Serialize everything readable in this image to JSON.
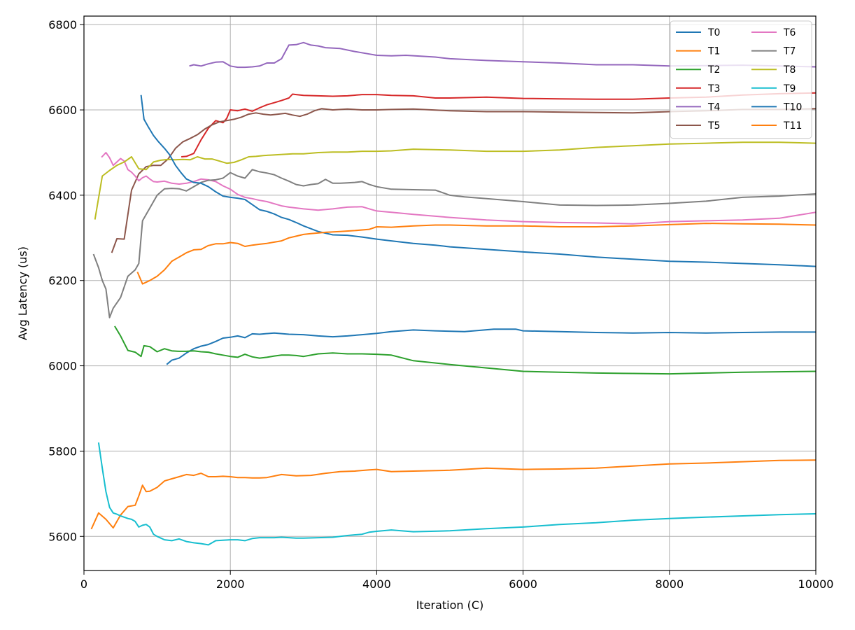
{
  "chart_data": {
    "type": "line",
    "title": "",
    "xlabel": "Iteration (C)",
    "ylabel": "Avg Latency (us)",
    "xlim": [
      0,
      10000
    ],
    "ylim": [
      5520,
      6820
    ],
    "xticks": [
      0,
      2000,
      4000,
      6000,
      8000,
      10000
    ],
    "yticks": [
      5600,
      5800,
      6000,
      6200,
      6400,
      6600,
      6800
    ],
    "grid": true,
    "legend_position": "top-right",
    "legend_columns": 2,
    "series": [
      {
        "name": "T0",
        "color": "#1f77b4",
        "x": [
          1130,
          1200,
          1300,
          1400,
          1500,
          1600,
          1700,
          1800,
          1900,
          2000,
          2100,
          2200,
          2300,
          2400,
          2600,
          2800,
          3000,
          3200,
          3400,
          3600,
          3800,
          4000,
          4200,
          4500,
          4800,
          5200,
          5600,
          5900,
          6000,
          6500,
          7000,
          7500,
          8000,
          8500,
          9000,
          9500,
          10000
        ],
        "y": [
          6003,
          6013,
          6018,
          6030,
          6040,
          6046,
          6050,
          6057,
          6065,
          6067,
          6070,
          6066,
          6075,
          6074,
          6077,
          6074,
          6073,
          6070,
          6068,
          6070,
          6073,
          6076,
          6080,
          6084,
          6082,
          6080,
          6086,
          6086,
          6082,
          6080,
          6078,
          6077,
          6078,
          6077,
          6078,
          6079,
          6079
        ]
      },
      {
        "name": "T1",
        "color": "#ff7f0e",
        "x": [
          100,
          200,
          300,
          400,
          500,
          600,
          700,
          750,
          800,
          850,
          900,
          1000,
          1100,
          1200,
          1300,
          1400,
          1500,
          1600,
          1700,
          1800,
          1900,
          2000,
          2100,
          2200,
          2300,
          2400,
          2500,
          2700,
          2900,
          3100,
          3300,
          3500,
          3700,
          3900,
          4000,
          4200,
          4500,
          5000,
          5500,
          6000,
          6500,
          7000,
          7500,
          8000,
          8500,
          9000,
          9500,
          10000
        ],
        "y": [
          5617,
          5655,
          5640,
          5620,
          5650,
          5670,
          5673,
          5695,
          5720,
          5705,
          5706,
          5715,
          5730,
          5735,
          5740,
          5745,
          5743,
          5748,
          5740,
          5740,
          5741,
          5740,
          5738,
          5738,
          5737,
          5737,
          5738,
          5745,
          5742,
          5743,
          5748,
          5752,
          5753,
          5756,
          5757,
          5752,
          5753,
          5755,
          5760,
          5757,
          5758,
          5760,
          5765,
          5770,
          5772,
          5775,
          5778,
          5779
        ]
      },
      {
        "name": "T2",
        "color": "#2ca02c",
        "x": [
          420,
          500,
          600,
          700,
          780,
          820,
          900,
          1000,
          1100,
          1200,
          1300,
          1400,
          1500,
          1600,
          1700,
          1800,
          1900,
          2000,
          2100,
          2200,
          2300,
          2400,
          2500,
          2600,
          2700,
          2800,
          2900,
          3000,
          3200,
          3400,
          3600,
          3800,
          4000,
          4200,
          4500,
          5000,
          5500,
          6000,
          6500,
          7000,
          7500,
          8000,
          8500,
          9000,
          9500,
          10000
        ],
        "y": [
          6093,
          6070,
          6036,
          6032,
          6022,
          6047,
          6045,
          6033,
          6040,
          6035,
          6034,
          6034,
          6035,
          6033,
          6032,
          6028,
          6025,
          6022,
          6020,
          6027,
          6021,
          6018,
          6020,
          6023,
          6025,
          6025,
          6024,
          6022,
          6028,
          6030,
          6028,
          6028,
          6027,
          6025,
          6012,
          6003,
          5995,
          5987,
          5985,
          5983,
          5982,
          5981,
          5983,
          5985,
          5986,
          5987
        ]
      },
      {
        "name": "T3",
        "color": "#d62728",
        "x": [
          1330,
          1400,
          1500,
          1600,
          1700,
          1800,
          1900,
          1950,
          2000,
          2100,
          2200,
          2300,
          2400,
          2500,
          2600,
          2700,
          2800,
          2850,
          2900,
          3000,
          3200,
          3400,
          3600,
          3800,
          4000,
          4200,
          4500,
          4800,
          5000,
          5500,
          6000,
          6500,
          7000,
          7500,
          8000,
          8500,
          9000,
          9500,
          10000
        ],
        "y": [
          6490,
          6491,
          6498,
          6530,
          6557,
          6575,
          6570,
          6580,
          6600,
          6598,
          6602,
          6597,
          6605,
          6612,
          6617,
          6622,
          6628,
          6637,
          6636,
          6634,
          6633,
          6632,
          6633,
          6636,
          6636,
          6634,
          6633,
          6628,
          6628,
          6630,
          6627,
          6626,
          6625,
          6625,
          6628,
          6630,
          6635,
          6638,
          6640
        ]
      },
      {
        "name": "T4",
        "color": "#9467bd",
        "x": [
          1440,
          1500,
          1600,
          1700,
          1800,
          1900,
          2000,
          2100,
          2200,
          2300,
          2400,
          2500,
          2600,
          2700,
          2800,
          2900,
          3000,
          3100,
          3200,
          3300,
          3500,
          3700,
          3900,
          4000,
          4200,
          4400,
          4600,
          4800,
          5000,
          5500,
          6000,
          6500,
          7000,
          7500,
          8000,
          8500,
          9000,
          9500,
          10000
        ],
        "y": [
          6703,
          6706,
          6703,
          6708,
          6712,
          6713,
          6703,
          6700,
          6700,
          6701,
          6703,
          6710,
          6710,
          6720,
          6752,
          6753,
          6758,
          6752,
          6750,
          6746,
          6744,
          6737,
          6731,
          6728,
          6727,
          6728,
          6726,
          6724,
          6720,
          6716,
          6713,
          6710,
          6706,
          6706,
          6703,
          6704,
          6705,
          6703,
          6701
        ]
      },
      {
        "name": "T5",
        "color": "#8c564b",
        "x": [
          380,
          450,
          550,
          650,
          750,
          850,
          950,
          1050,
          1150,
          1250,
          1350,
          1450,
          1550,
          1650,
          1750,
          1850,
          1950,
          2050,
          2150,
          2250,
          2350,
          2450,
          2550,
          2650,
          2750,
          2850,
          2950,
          3050,
          3150,
          3250,
          3400,
          3600,
          3800,
          4000,
          4200,
          4500,
          5000,
          5500,
          6000,
          6500,
          7000,
          7500,
          8000,
          8500,
          9000,
          9500,
          10000
        ],
        "y": [
          6265,
          6298,
          6297,
          6412,
          6450,
          6467,
          6470,
          6470,
          6485,
          6510,
          6525,
          6533,
          6542,
          6555,
          6565,
          6572,
          6575,
          6578,
          6583,
          6590,
          6593,
          6590,
          6588,
          6590,
          6592,
          6588,
          6585,
          6590,
          6598,
          6603,
          6600,
          6602,
          6600,
          6600,
          6601,
          6602,
          6598,
          6596,
          6596,
          6595,
          6594,
          6593,
          6596,
          6598,
          6601,
          6601,
          6603
        ]
      },
      {
        "name": "T6",
        "color": "#e377c2",
        "x": [
          240,
          300,
          350,
          400,
          450,
          500,
          550,
          600,
          650,
          700,
          750,
          800,
          850,
          900,
          950,
          1000,
          1100,
          1200,
          1300,
          1400,
          1500,
          1600,
          1700,
          1800,
          1900,
          2000,
          2100,
          2200,
          2300,
          2400,
          2500,
          2600,
          2700,
          2800,
          3000,
          3200,
          3400,
          3600,
          3800,
          3900,
          4000,
          4200,
          4500,
          5000,
          5500,
          6000,
          6500,
          7000,
          7500,
          8000,
          8500,
          9000,
          9500,
          10000
        ],
        "y": [
          6489,
          6500,
          6488,
          6470,
          6478,
          6486,
          6480,
          6460,
          6454,
          6445,
          6434,
          6441,
          6445,
          6438,
          6432,
          6431,
          6433,
          6428,
          6426,
          6428,
          6432,
          6438,
          6436,
          6432,
          6422,
          6414,
          6402,
          6395,
          6392,
          6388,
          6385,
          6380,
          6375,
          6372,
          6368,
          6365,
          6368,
          6372,
          6373,
          6368,
          6363,
          6360,
          6355,
          6348,
          6342,
          6338,
          6336,
          6335,
          6333,
          6338,
          6340,
          6342,
          6346,
          6360
        ]
      },
      {
        "name": "T7",
        "color": "#7f7f7f",
        "x": [
          130,
          200,
          250,
          300,
          350,
          400,
          500,
          600,
          700,
          750,
          800,
          900,
          1000,
          1100,
          1200,
          1300,
          1400,
          1500,
          1600,
          1700,
          1800,
          1900,
          2000,
          2100,
          2200,
          2300,
          2400,
          2500,
          2600,
          2700,
          2800,
          2900,
          3000,
          3100,
          3200,
          3300,
          3400,
          3500,
          3600,
          3700,
          3800,
          3900,
          4000,
          4200,
          4500,
          4800,
          5000,
          5200,
          5500,
          6000,
          6500,
          7000,
          7500,
          8000,
          8500,
          9000,
          9500,
          10000
        ],
        "y": [
          6262,
          6230,
          6200,
          6180,
          6113,
          6135,
          6160,
          6210,
          6225,
          6240,
          6340,
          6370,
          6400,
          6415,
          6416,
          6415,
          6410,
          6420,
          6430,
          6435,
          6436,
          6440,
          6453,
          6445,
          6440,
          6460,
          6455,
          6452,
          6448,
          6440,
          6433,
          6425,
          6422,
          6425,
          6427,
          6437,
          6428,
          6428,
          6429,
          6430,
          6432,
          6425,
          6420,
          6414,
          6413,
          6412,
          6400,
          6396,
          6392,
          6385,
          6377,
          6376,
          6377,
          6381,
          6386,
          6395,
          6398,
          6403
        ]
      },
      {
        "name": "T8",
        "color": "#bcbd22",
        "x": [
          150,
          250,
          350,
          450,
          550,
          650,
          750,
          850,
          950,
          1050,
          1150,
          1250,
          1350,
          1450,
          1550,
          1650,
          1750,
          1850,
          1950,
          2050,
          2150,
          2250,
          2350,
          2450,
          2550,
          2650,
          2750,
          2850,
          3000,
          3200,
          3400,
          3600,
          3800,
          4000,
          4200,
          4500,
          5000,
          5500,
          6000,
          6500,
          7000,
          7500,
          8000,
          8500,
          9000,
          9500,
          10000
        ],
        "y": [
          6343,
          6445,
          6458,
          6470,
          6478,
          6490,
          6462,
          6460,
          6478,
          6482,
          6484,
          6483,
          6484,
          6483,
          6490,
          6485,
          6485,
          6480,
          6475,
          6477,
          6483,
          6490,
          6491,
          6493,
          6494,
          6495,
          6496,
          6497,
          6497,
          6500,
          6501,
          6501,
          6503,
          6503,
          6504,
          6508,
          6506,
          6503,
          6503,
          6506,
          6512,
          6516,
          6520,
          6522,
          6524,
          6524,
          6522
        ]
      },
      {
        "name": "T9",
        "color": "#17becf",
        "x": [
          200,
          250,
          300,
          350,
          400,
          450,
          500,
          550,
          600,
          650,
          700,
          750,
          800,
          850,
          900,
          950,
          1000,
          1050,
          1100,
          1150,
          1200,
          1300,
          1400,
          1500,
          1600,
          1700,
          1800,
          1900,
          2000,
          2100,
          2200,
          2300,
          2400,
          2500,
          2600,
          2700,
          2800,
          2900,
          3000,
          3200,
          3400,
          3500,
          3600,
          3800,
          3900,
          4000,
          4200,
          4500,
          5000,
          5500,
          6000,
          6500,
          7000,
          7500,
          8000,
          8500,
          9000,
          9500,
          10000
        ],
        "y": [
          5820,
          5760,
          5705,
          5668,
          5655,
          5652,
          5648,
          5645,
          5642,
          5640,
          5635,
          5622,
          5626,
          5628,
          5622,
          5605,
          5600,
          5596,
          5592,
          5591,
          5590,
          5594,
          5588,
          5585,
          5583,
          5580,
          5590,
          5591,
          5592,
          5592,
          5590,
          5595,
          5597,
          5597,
          5597,
          5598,
          5597,
          5596,
          5596,
          5597,
          5598,
          5600,
          5602,
          5605,
          5610,
          5612,
          5615,
          5611,
          5613,
          5618,
          5622,
          5628,
          5632,
          5638,
          5642,
          5645,
          5648,
          5651,
          5653
        ]
      },
      {
        "name": "T10",
        "color": "#1f77b4",
        "x": [
          780,
          820,
          880,
          950,
          1020,
          1100,
          1170,
          1250,
          1330,
          1400,
          1500,
          1600,
          1700,
          1800,
          1900,
          2000,
          2100,
          2200,
          2300,
          2400,
          2500,
          2600,
          2700,
          2800,
          2900,
          3000,
          3200,
          3400,
          3600,
          3800,
          4000,
          4200,
          4500,
          4800,
          5000,
          5500,
          6000,
          6500,
          7000,
          7500,
          8000,
          8500,
          9000,
          9500,
          10000
        ],
        "y": [
          6635,
          6578,
          6560,
          6540,
          6525,
          6510,
          6495,
          6470,
          6452,
          6438,
          6430,
          6428,
          6420,
          6408,
          6398,
          6395,
          6393,
          6390,
          6378,
          6366,
          6362,
          6356,
          6348,
          6343,
          6336,
          6328,
          6315,
          6307,
          6306,
          6302,
          6297,
          6293,
          6287,
          6283,
          6279,
          6273,
          6267,
          6262,
          6255,
          6250,
          6245,
          6243,
          6240,
          6237,
          6233
        ]
      },
      {
        "name": "T11",
        "color": "#ff7f0e",
        "x": [
          730,
          800,
          850,
          900,
          1000,
          1100,
          1200,
          1300,
          1400,
          1500,
          1600,
          1700,
          1800,
          1900,
          2000,
          2100,
          2200,
          2300,
          2400,
          2500,
          2600,
          2700,
          2800,
          2900,
          3000,
          3100,
          3300,
          3500,
          3700,
          3900,
          4000,
          4200,
          4500,
          4800,
          5000,
          5500,
          6000,
          6500,
          7000,
          7500,
          8000,
          8500,
          9000,
          9500,
          10000
        ],
        "y": [
          6220,
          6192,
          6196,
          6200,
          6210,
          6225,
          6245,
          6255,
          6265,
          6272,
          6273,
          6282,
          6286,
          6286,
          6289,
          6287,
          6280,
          6283,
          6285,
          6287,
          6290,
          6293,
          6300,
          6304,
          6308,
          6310,
          6313,
          6315,
          6317,
          6320,
          6326,
          6325,
          6328,
          6330,
          6330,
          6328,
          6328,
          6326,
          6326,
          6328,
          6331,
          6334,
          6333,
          6332,
          6330
        ]
      }
    ]
  }
}
